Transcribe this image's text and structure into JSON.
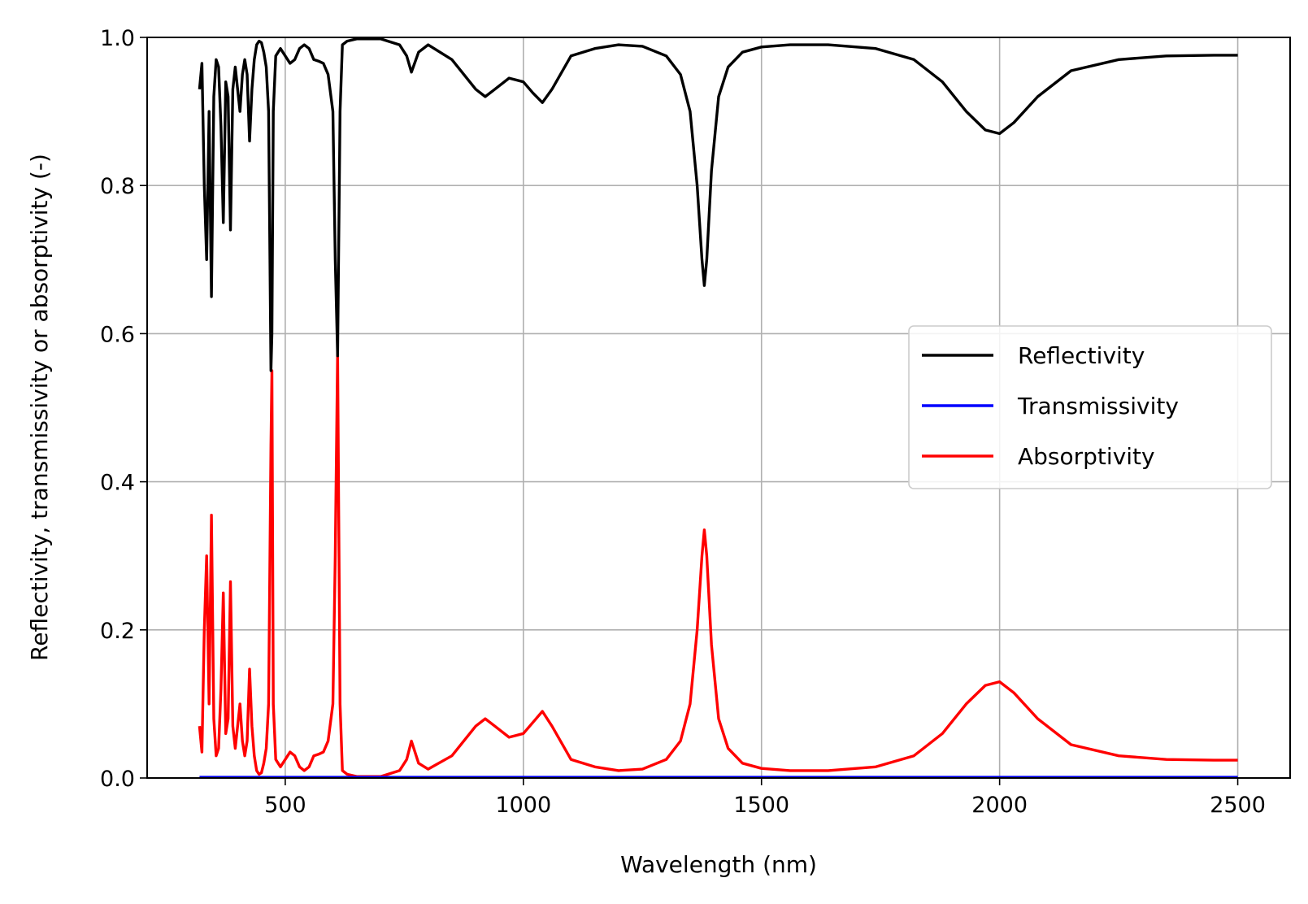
{
  "chart_data": {
    "type": "line",
    "title": "",
    "xlabel": "Wavelength (nm)",
    "ylabel": "Reflectivity, transmissivity or absorptivity (-)",
    "xlim": [
      210,
      2610
    ],
    "ylim": [
      0.0,
      1.0
    ],
    "xticks": [
      500,
      1000,
      1500,
      2000,
      2500
    ],
    "xtick_labels": [
      "500",
      "1000",
      "1500",
      "2000",
      "2500"
    ],
    "yticks": [
      0.0,
      0.2,
      0.4,
      0.6,
      0.8,
      1.0
    ],
    "ytick_labels": [
      "0.0",
      "0.2",
      "0.4",
      "0.6",
      "0.8",
      "1.0"
    ],
    "grid": true,
    "legend_position": "center-right",
    "series": [
      {
        "name": "Reflectivity",
        "color": "#000000",
        "x": [
          320,
          325,
          330,
          335,
          340,
          345,
          350,
          355,
          360,
          365,
          370,
          375,
          380,
          385,
          390,
          395,
          400,
          405,
          410,
          415,
          420,
          425,
          430,
          435,
          440,
          445,
          450,
          455,
          460,
          465,
          470,
          472,
          475,
          480,
          490,
          500,
          510,
          520,
          530,
          540,
          550,
          560,
          570,
          580,
          590,
          600,
          605,
          610,
          615,
          620,
          630,
          650,
          700,
          740,
          755,
          765,
          780,
          800,
          850,
          900,
          920,
          940,
          970,
          1000,
          1020,
          1040,
          1060,
          1100,
          1150,
          1200,
          1250,
          1300,
          1330,
          1350,
          1365,
          1375,
          1380,
          1385,
          1395,
          1410,
          1430,
          1460,
          1500,
          1560,
          1640,
          1740,
          1820,
          1880,
          1930,
          1970,
          2000,
          2030,
          2080,
          2150,
          2250,
          2350,
          2450,
          2500
        ],
        "y": [
          0.93,
          0.965,
          0.8,
          0.7,
          0.9,
          0.65,
          0.92,
          0.97,
          0.96,
          0.88,
          0.75,
          0.94,
          0.92,
          0.74,
          0.93,
          0.96,
          0.93,
          0.9,
          0.95,
          0.97,
          0.95,
          0.86,
          0.93,
          0.97,
          0.99,
          0.995,
          0.993,
          0.98,
          0.96,
          0.9,
          0.55,
          0.6,
          0.9,
          0.975,
          0.985,
          0.975,
          0.965,
          0.97,
          0.985,
          0.99,
          0.985,
          0.97,
          0.968,
          0.965,
          0.95,
          0.9,
          0.7,
          0.57,
          0.9,
          0.99,
          0.995,
          0.998,
          0.998,
          0.99,
          0.975,
          0.953,
          0.98,
          0.99,
          0.97,
          0.93,
          0.92,
          0.93,
          0.945,
          0.94,
          0.925,
          0.912,
          0.93,
          0.975,
          0.985,
          0.99,
          0.988,
          0.975,
          0.95,
          0.9,
          0.8,
          0.7,
          0.665,
          0.7,
          0.82,
          0.92,
          0.96,
          0.98,
          0.987,
          0.99,
          0.99,
          0.985,
          0.97,
          0.94,
          0.9,
          0.875,
          0.87,
          0.885,
          0.92,
          0.955,
          0.97,
          0.975,
          0.976,
          0.976
        ]
      },
      {
        "name": "Transmissivity",
        "color": "#0000ff",
        "x": [
          320,
          2500
        ],
        "y": [
          0.001,
          0.001
        ]
      },
      {
        "name": "Absorptivity",
        "color": "#ff0000",
        "x": [
          320,
          325,
          330,
          335,
          340,
          345,
          350,
          355,
          360,
          365,
          370,
          375,
          380,
          385,
          390,
          395,
          400,
          405,
          410,
          415,
          420,
          425,
          430,
          435,
          440,
          445,
          450,
          455,
          460,
          465,
          470,
          472,
          475,
          480,
          490,
          500,
          510,
          520,
          530,
          540,
          550,
          560,
          570,
          580,
          590,
          600,
          605,
          610,
          615,
          620,
          630,
          650,
          700,
          740,
          755,
          765,
          780,
          800,
          850,
          900,
          920,
          940,
          970,
          1000,
          1020,
          1040,
          1060,
          1100,
          1150,
          1200,
          1250,
          1300,
          1330,
          1350,
          1365,
          1375,
          1380,
          1385,
          1395,
          1410,
          1430,
          1460,
          1500,
          1560,
          1640,
          1740,
          1820,
          1880,
          1930,
          1970,
          2000,
          2030,
          2080,
          2150,
          2250,
          2350,
          2450,
          2500
        ],
        "y": [
          0.07,
          0.035,
          0.2,
          0.3,
          0.1,
          0.355,
          0.08,
          0.03,
          0.04,
          0.12,
          0.25,
          0.06,
          0.08,
          0.265,
          0.07,
          0.04,
          0.07,
          0.1,
          0.05,
          0.03,
          0.05,
          0.147,
          0.07,
          0.03,
          0.01,
          0.005,
          0.007,
          0.02,
          0.04,
          0.1,
          0.45,
          0.55,
          0.1,
          0.025,
          0.015,
          0.025,
          0.035,
          0.03,
          0.015,
          0.01,
          0.015,
          0.03,
          0.032,
          0.035,
          0.05,
          0.1,
          0.3,
          0.575,
          0.1,
          0.01,
          0.005,
          0.002,
          0.002,
          0.01,
          0.025,
          0.05,
          0.02,
          0.012,
          0.03,
          0.07,
          0.08,
          0.07,
          0.055,
          0.06,
          0.075,
          0.09,
          0.07,
          0.025,
          0.015,
          0.01,
          0.012,
          0.025,
          0.05,
          0.1,
          0.2,
          0.3,
          0.335,
          0.3,
          0.18,
          0.08,
          0.04,
          0.02,
          0.013,
          0.01,
          0.01,
          0.015,
          0.03,
          0.06,
          0.1,
          0.125,
          0.13,
          0.115,
          0.08,
          0.045,
          0.03,
          0.025,
          0.024,
          0.024
        ]
      }
    ]
  }
}
